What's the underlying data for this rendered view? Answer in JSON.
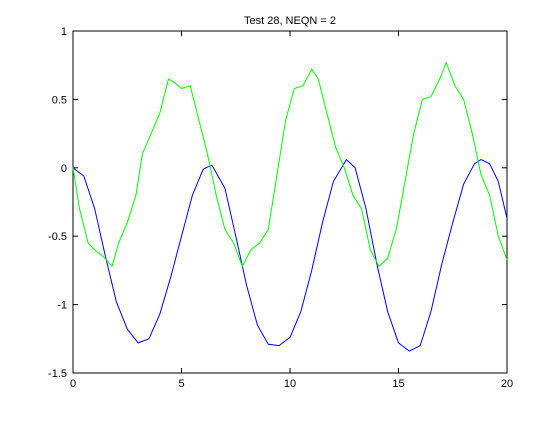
{
  "chart_data": {
    "type": "line",
    "title": "Test 28, NEQN = 2",
    "xlabel": "",
    "ylabel": "",
    "xlim": [
      0,
      20
    ],
    "ylim": [
      -1.5,
      1
    ],
    "xticks": [
      {
        "value": 0,
        "label": "0"
      },
      {
        "value": 5,
        "label": "5"
      },
      {
        "value": 10,
        "label": "10"
      },
      {
        "value": 15,
        "label": "15"
      },
      {
        "value": 20,
        "label": "20"
      }
    ],
    "yticks": [
      {
        "value": 1,
        "label": "1"
      },
      {
        "value": 0.5,
        "label": "0.5"
      },
      {
        "value": 0,
        "label": "0"
      },
      {
        "value": -0.5,
        "label": "-0.5"
      },
      {
        "value": -1,
        "label": "-1"
      },
      {
        "value": -1.5,
        "label": "-1.5"
      }
    ],
    "grid": false,
    "legend": "none",
    "series": [
      {
        "color": "#0000ff",
        "x": [
          0,
          0.5,
          1.0,
          1.5,
          2.0,
          2.5,
          3.0,
          3.5,
          4.0,
          4.5,
          5.0,
          5.5,
          6.0,
          6.4,
          7.0,
          7.5,
          8.0,
          8.5,
          9.0,
          9.5,
          10.0,
          10.5,
          11.0,
          11.5,
          12.0,
          12.6,
          13.0,
          13.5,
          14.0,
          14.5,
          15.0,
          15.5,
          16.0,
          16.5,
          17.0,
          17.5,
          18.0,
          18.5,
          18.8,
          19.2,
          19.6,
          20.0
        ],
        "y": [
          0.0,
          -0.06,
          -0.3,
          -0.65,
          -0.98,
          -1.18,
          -1.28,
          -1.25,
          -1.07,
          -0.8,
          -0.5,
          -0.2,
          -0.01,
          0.02,
          -0.15,
          -0.5,
          -0.86,
          -1.15,
          -1.29,
          -1.3,
          -1.24,
          -1.05,
          -0.75,
          -0.4,
          -0.1,
          0.06,
          0.0,
          -0.3,
          -0.7,
          -1.05,
          -1.28,
          -1.34,
          -1.3,
          -1.05,
          -0.7,
          -0.4,
          -0.12,
          0.03,
          0.06,
          0.03,
          -0.1,
          -0.37
        ]
      },
      {
        "color": "#00ff00",
        "x": [
          0,
          0.3,
          0.7,
          1.0,
          1.4,
          1.8,
          2.1,
          2.5,
          2.9,
          3.2,
          3.6,
          4.0,
          4.4,
          4.7,
          5.0,
          5.4,
          5.8,
          6.2,
          6.6,
          7.0,
          7.4,
          7.8,
          8.2,
          8.6,
          9.0,
          9.4,
          9.8,
          10.2,
          10.6,
          11.0,
          11.3,
          11.7,
          12.1,
          12.5,
          12.9,
          13.3,
          13.7,
          14.1,
          14.5,
          14.9,
          15.3,
          15.7,
          16.1,
          16.5,
          16.9,
          17.2,
          17.6,
          18.0,
          18.4,
          18.8,
          19.2,
          19.6,
          20.0
        ],
        "y": [
          0.0,
          -0.3,
          -0.55,
          -0.6,
          -0.65,
          -0.72,
          -0.55,
          -0.4,
          -0.2,
          0.1,
          0.25,
          0.4,
          0.65,
          0.62,
          0.58,
          0.6,
          0.35,
          0.1,
          -0.2,
          -0.45,
          -0.55,
          -0.72,
          -0.6,
          -0.55,
          -0.45,
          -0.05,
          0.35,
          0.58,
          0.6,
          0.72,
          0.65,
          0.4,
          0.15,
          0.0,
          -0.2,
          -0.3,
          -0.6,
          -0.72,
          -0.66,
          -0.45,
          -0.1,
          0.25,
          0.5,
          0.52,
          0.65,
          0.77,
          0.6,
          0.5,
          0.25,
          -0.05,
          -0.2,
          -0.5,
          -0.67
        ]
      }
    ]
  }
}
